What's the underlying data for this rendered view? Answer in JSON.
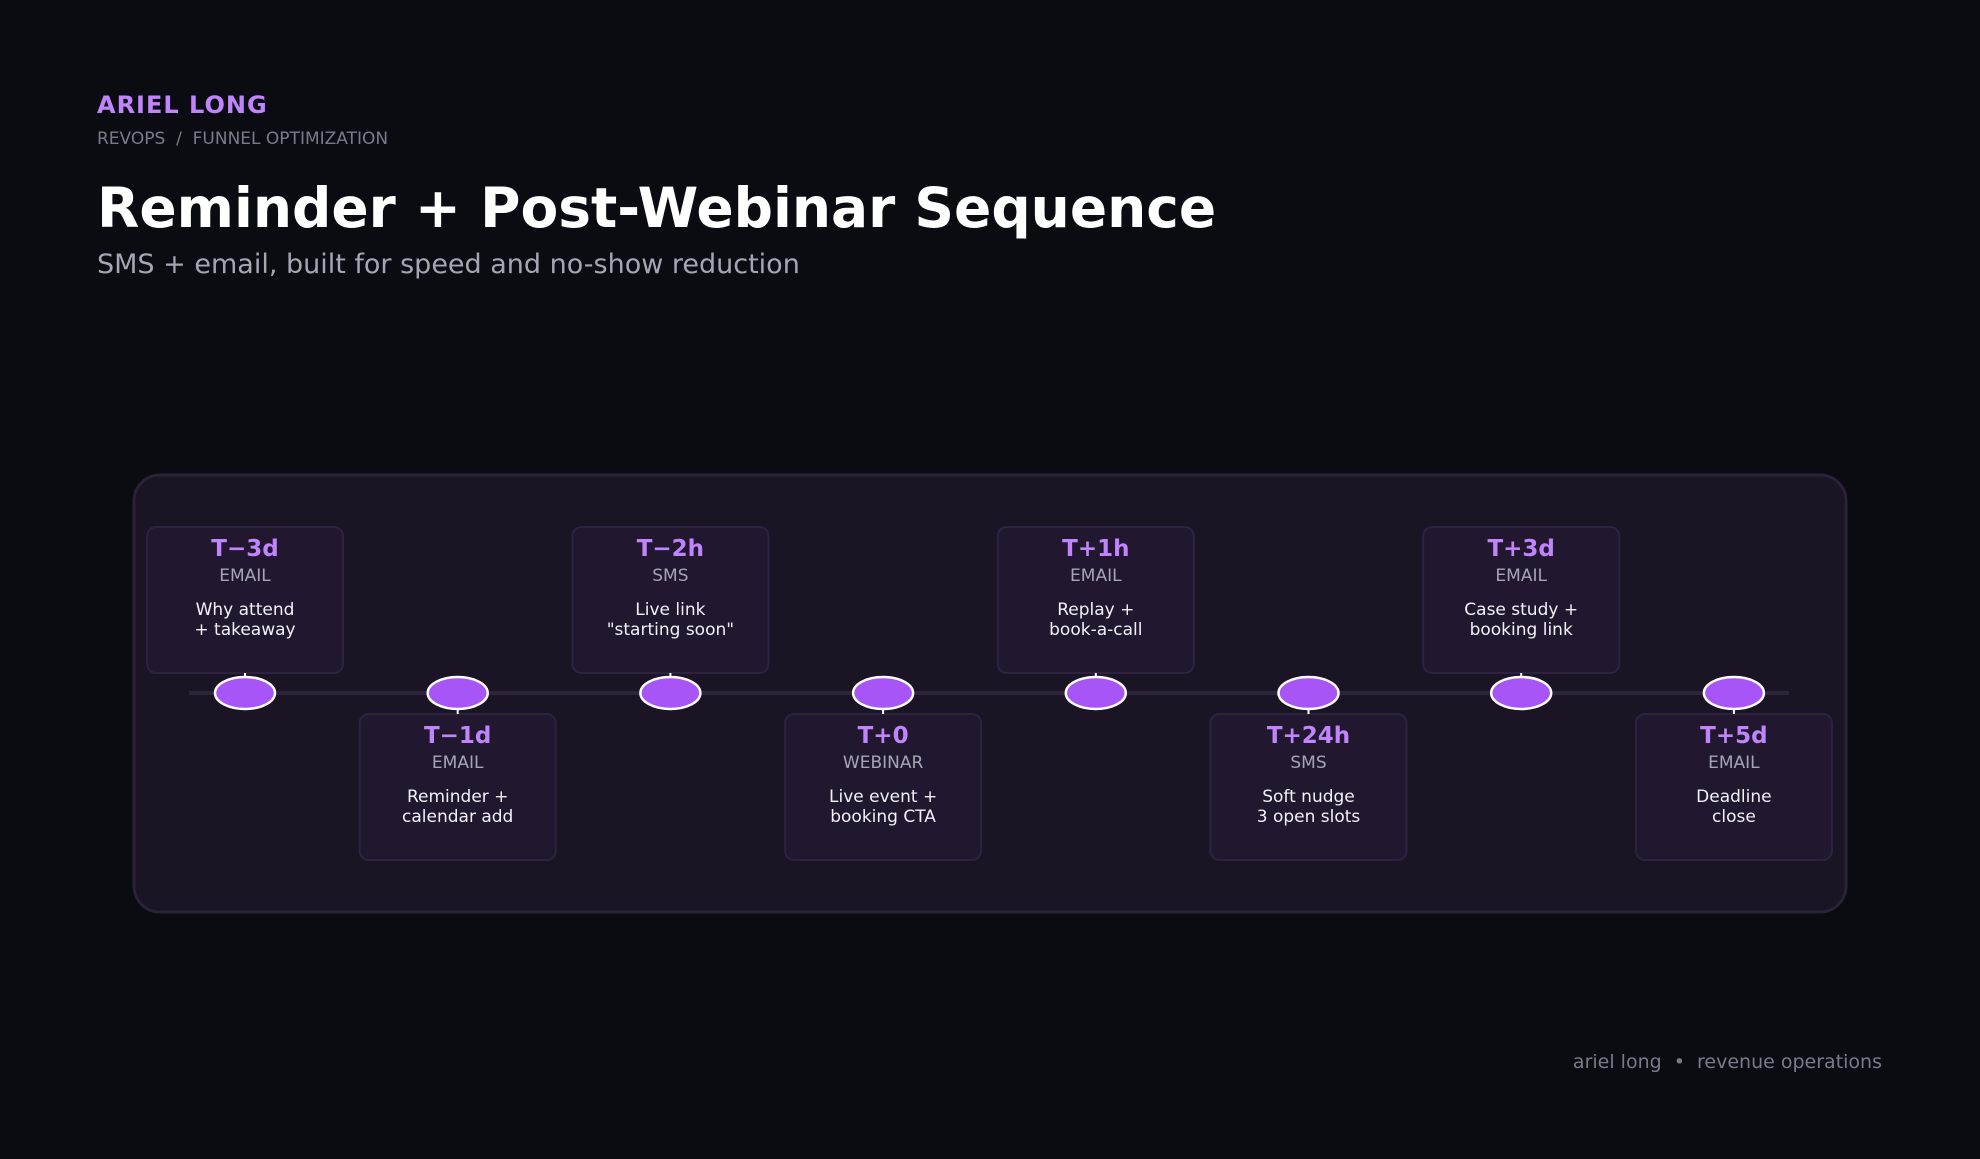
{
  "header": {
    "name": "ARIEL LONG",
    "breadcrumb": "REVOPS  /  FUNNEL OPTIMIZATION",
    "title": "Reminder + Post-Webinar Sequence",
    "subtitle": "SMS + email, built for speed and no-show reduction"
  },
  "steps": [
    {
      "time": "T−3d",
      "channel": "EMAIL",
      "lines": [
        "Why attend",
        "+ takeaway"
      ]
    },
    {
      "time": "T−1d",
      "channel": "EMAIL",
      "lines": [
        "Reminder +",
        "calendar add"
      ]
    },
    {
      "time": "T−2h",
      "channel": "SMS",
      "lines": [
        "Live link",
        "\"starting soon\""
      ]
    },
    {
      "time": "T+0",
      "channel": "WEBINAR",
      "lines": [
        "Live event +",
        "booking CTA"
      ]
    },
    {
      "time": "T+1h",
      "channel": "EMAIL",
      "lines": [
        "Replay +",
        "book-a-call"
      ]
    },
    {
      "time": "T+24h",
      "channel": "SMS",
      "lines": [
        "Soft nudge",
        "3 open slots"
      ]
    },
    {
      "time": "T+3d",
      "channel": "EMAIL",
      "lines": [
        "Case study +",
        "booking link"
      ]
    },
    {
      "time": "T+5d",
      "channel": "EMAIL",
      "lines": [
        "Deadline",
        "close"
      ]
    }
  ],
  "footer": "ariel long  •  revenue operations"
}
